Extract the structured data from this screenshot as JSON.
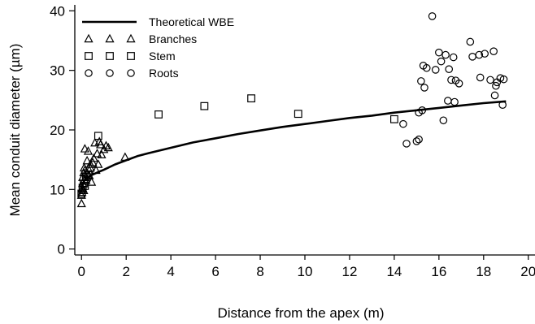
{
  "chart_data": {
    "type": "scatter",
    "title": "",
    "xlabel": "Distance from the apex (m)",
    "ylabel": "Mean conduit diameter (µm)",
    "xlim": [
      -0.3,
      20.3
    ],
    "ylim": [
      -1,
      41
    ],
    "xticks": [
      0,
      2,
      4,
      6,
      8,
      10,
      12,
      14,
      16,
      18,
      20
    ],
    "yticks": [
      0,
      10,
      20,
      30,
      40
    ],
    "grid": false,
    "legend_position": "top-left",
    "series": [
      {
        "name": "Theoretical WBE",
        "kind": "line",
        "color": "#000000",
        "x": [
          0.0,
          0.05,
          0.1,
          0.2,
          0.3,
          0.5,
          0.8,
          1.0,
          1.5,
          2.0,
          2.5,
          3.0,
          4.0,
          5.0,
          6.0,
          7.0,
          8.0,
          9.0,
          10.0,
          11.0,
          12.0,
          13.0,
          14.0,
          15.0,
          16.0,
          17.0,
          18.0,
          19.0
        ],
        "y": [
          10.0,
          10.8,
          11.3,
          11.8,
          12.1,
          12.5,
          13.0,
          13.3,
          14.2,
          14.9,
          15.6,
          16.1,
          17.0,
          17.9,
          18.6,
          19.3,
          19.9,
          20.5,
          21.0,
          21.5,
          22.0,
          22.4,
          22.9,
          23.3,
          23.7,
          24.1,
          24.5,
          24.8
        ]
      },
      {
        "name": "Branches",
        "kind": "marker",
        "marker": "triangle",
        "x": [
          0.0,
          0.0,
          0.02,
          0.03,
          0.05,
          0.05,
          0.05,
          0.1,
          0.1,
          0.12,
          0.15,
          0.15,
          0.2,
          0.2,
          0.25,
          0.25,
          0.3,
          0.3,
          0.35,
          0.4,
          0.4,
          0.45,
          0.5,
          0.55,
          0.6,
          0.65,
          0.7,
          0.75,
          0.8,
          0.85,
          0.9,
          1.0,
          1.1,
          1.2,
          1.95
        ],
        "y": [
          7.6,
          9.0,
          9.5,
          10.0,
          10.2,
          11.0,
          12.0,
          12.8,
          9.8,
          13.6,
          13.2,
          16.8,
          11.5,
          12.0,
          14.8,
          12.6,
          16.4,
          13.5,
          12.3,
          13.6,
          14.2,
          11.2,
          14.5,
          15.2,
          17.8,
          13.2,
          16.0,
          14.2,
          18.0,
          17.5,
          15.8,
          16.7,
          17.3,
          17.0,
          15.4
        ]
      },
      {
        "name": "Stem",
        "kind": "marker",
        "marker": "square",
        "x": [
          0.0,
          0.05,
          0.1,
          0.15,
          0.2,
          0.3,
          0.75,
          3.45,
          5.5,
          7.6,
          9.7,
          14.0
        ],
        "y": [
          9.3,
          10.3,
          11.0,
          10.6,
          12.2,
          12.5,
          19.0,
          22.6,
          24.0,
          25.3,
          22.7,
          21.8
        ]
      },
      {
        "name": "Roots",
        "kind": "marker",
        "marker": "circle",
        "x": [
          14.4,
          14.55,
          15.0,
          15.1,
          15.1,
          15.2,
          15.25,
          15.3,
          15.35,
          15.45,
          15.7,
          15.85,
          16.0,
          16.1,
          16.2,
          16.3,
          16.4,
          16.45,
          16.55,
          16.65,
          16.7,
          16.75,
          16.9,
          17.4,
          17.5,
          17.8,
          17.85,
          18.05,
          18.3,
          18.45,
          18.5,
          18.55,
          18.6,
          18.75,
          18.85,
          18.9
        ],
        "y": [
          21.0,
          17.7,
          18.1,
          18.4,
          22.9,
          28.2,
          23.3,
          30.8,
          27.1,
          30.4,
          39.1,
          30.1,
          33.0,
          31.5,
          21.6,
          32.6,
          24.9,
          30.2,
          28.4,
          32.2,
          24.7,
          28.3,
          27.8,
          34.8,
          32.3,
          32.6,
          28.8,
          32.8,
          28.4,
          33.2,
          25.8,
          27.4,
          28.0,
          28.7,
          24.2,
          28.5
        ]
      }
    ]
  }
}
